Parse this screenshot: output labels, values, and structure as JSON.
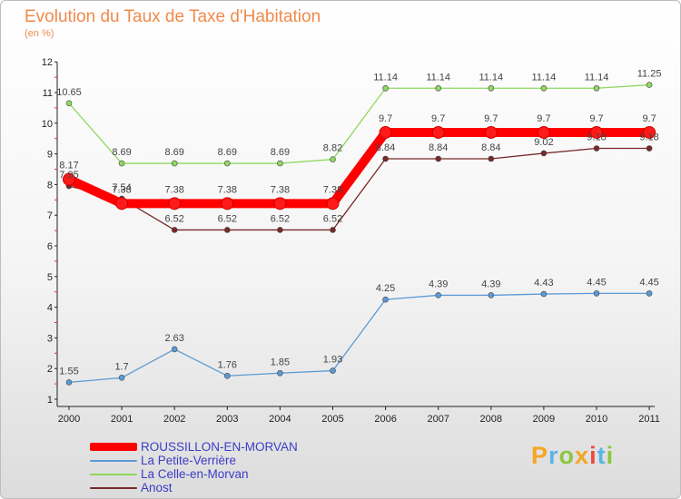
{
  "chart_data": {
    "type": "line",
    "title": "Evolution du Taux de Taxe d'Habitation",
    "subtitle": "(en %)",
    "x": [
      "2000",
      "2001",
      "2002",
      "2003",
      "2004",
      "2005",
      "2006",
      "2007",
      "2008",
      "2009",
      "2010",
      "2011"
    ],
    "ylim": [
      1,
      12
    ],
    "yticks": [
      1,
      2,
      3,
      4,
      5,
      6,
      7,
      8,
      9,
      10,
      11,
      12
    ],
    "grid": false,
    "legend_position": "bottom-left",
    "series": [
      {
        "name": "ROUSSILLON-EN-MORVAN",
        "color": "#ff0000",
        "values": [
          8.17,
          7.38,
          7.38,
          7.38,
          7.38,
          7.38,
          9.7,
          9.7,
          9.7,
          9.7,
          9.7,
          9.7
        ],
        "labels": [
          "8.17",
          "7.38",
          "7.38",
          "7.38",
          "7.38",
          "7.38",
          "9.7",
          "9.7",
          "9.7",
          "9.7",
          "9.7",
          "9.7"
        ]
      },
      {
        "name": "La Petite-Verrière",
        "color": "#5b9bd5",
        "values": [
          1.55,
          1.7,
          2.63,
          1.76,
          1.85,
          1.93,
          4.25,
          4.39,
          4.39,
          4.43,
          4.45,
          4.45
        ],
        "labels": [
          "1.55",
          "1.7",
          "2.63",
          "1.76",
          "1.85",
          "1.93",
          "4.25",
          "4.39",
          "4.39",
          "4.43",
          "4.45",
          "4.45"
        ]
      },
      {
        "name": "La Celle-en-Morvan",
        "color": "#90d860",
        "values": [
          10.65,
          8.69,
          8.69,
          8.69,
          8.69,
          8.82,
          11.14,
          11.14,
          11.14,
          11.14,
          11.14,
          11.25
        ],
        "labels": [
          "10.65",
          "8.69",
          "8.69",
          "8.69",
          "8.69",
          "8.82",
          "11.14",
          "11.14",
          "11.14",
          "11.14",
          "11.14",
          "11.25"
        ]
      },
      {
        "name": "Anost",
        "color": "#7a2828",
        "values": [
          7.95,
          7.54,
          6.52,
          6.52,
          6.52,
          6.52,
          8.84,
          8.84,
          8.84,
          9.02,
          9.18,
          9.18
        ],
        "labels": [
          "7.95",
          "7.54",
          "6.52",
          "6.52",
          "6.52",
          "6.52",
          "8.84",
          "8.84",
          "8.84",
          "9.02",
          "9.18",
          "9.18"
        ]
      }
    ]
  },
  "logo": {
    "text": "Proxiti",
    "colors": [
      "#f5a623",
      "#5ab4e6",
      "#8cc63e",
      "#f5a623",
      "#e84c3d",
      "#5ab4e6",
      "#8cc63e"
    ]
  }
}
